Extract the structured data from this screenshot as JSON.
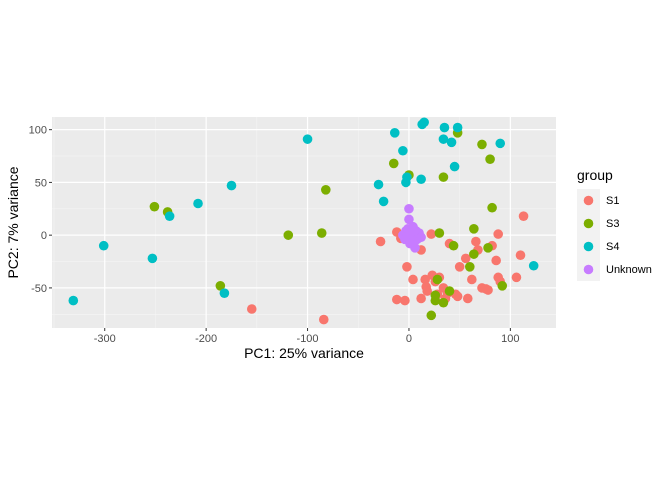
{
  "chart_data": {
    "type": "scatter",
    "title": "",
    "xlabel": "PC1: 25% variance",
    "ylabel": "PC2: 7% variance",
    "xlim": [
      -352,
      145
    ],
    "ylim": [
      -88,
      112
    ],
    "xticks": [
      -300,
      -200,
      -100,
      0,
      100
    ],
    "yticks": [
      -50,
      0,
      50,
      100
    ],
    "xtick_labels": [
      "-300",
      "-200",
      "-100",
      "0",
      "100"
    ],
    "ytick_labels": [
      "-50",
      "0",
      "50",
      "100"
    ],
    "grid": true,
    "legend_position": "right",
    "legend_title": "group",
    "series": [
      {
        "name": "S1",
        "color": "#F8766D",
        "points": [
          [
            -155,
            -70
          ],
          [
            -84,
            -80
          ],
          [
            -28,
            -6
          ],
          [
            -12,
            3
          ],
          [
            -12,
            -61
          ],
          [
            -8,
            -3
          ],
          [
            -4,
            -62
          ],
          [
            -2,
            -30
          ],
          [
            4,
            -42
          ],
          [
            5,
            -5
          ],
          [
            8,
            2
          ],
          [
            12,
            -14
          ],
          [
            12,
            -60
          ],
          [
            16,
            -42
          ],
          [
            17,
            -49
          ],
          [
            18,
            -53
          ],
          [
            22,
            1
          ],
          [
            23,
            -38
          ],
          [
            26,
            -44
          ],
          [
            28,
            -56
          ],
          [
            30,
            -40
          ],
          [
            34,
            -50
          ],
          [
            36,
            -60
          ],
          [
            38,
            -55
          ],
          [
            40,
            -8
          ],
          [
            46,
            -56
          ],
          [
            48,
            -58
          ],
          [
            50,
            -30
          ],
          [
            56,
            -22
          ],
          [
            58,
            -60
          ],
          [
            62,
            -42
          ],
          [
            66,
            -6
          ],
          [
            68,
            -14
          ],
          [
            72,
            -50
          ],
          [
            76,
            -51
          ],
          [
            82,
            -10
          ],
          [
            86,
            -24
          ],
          [
            88,
            1
          ],
          [
            88,
            -40
          ],
          [
            90,
            -44
          ],
          [
            106,
            -40
          ],
          [
            110,
            -19
          ],
          [
            113,
            18
          ],
          [
            78,
            -52
          ]
        ]
      },
      {
        "name": "S3",
        "color": "#7CAE00",
        "points": [
          [
            -251,
            27
          ],
          [
            -238,
            22
          ],
          [
            -186,
            -48
          ],
          [
            -119,
            0
          ],
          [
            -86,
            2
          ],
          [
            -82,
            43
          ],
          [
            -15,
            68
          ],
          [
            0,
            57
          ],
          [
            26,
            -57
          ],
          [
            26,
            -62
          ],
          [
            28,
            -42
          ],
          [
            30,
            2
          ],
          [
            34,
            55
          ],
          [
            40,
            -53
          ],
          [
            44,
            -10
          ],
          [
            48,
            97
          ],
          [
            60,
            -30
          ],
          [
            64,
            6
          ],
          [
            64,
            -18
          ],
          [
            72,
            86
          ],
          [
            78,
            -12
          ],
          [
            80,
            72
          ],
          [
            82,
            26
          ],
          [
            92,
            -48
          ],
          [
            22,
            -76
          ],
          [
            34,
            -64
          ]
        ]
      },
      {
        "name": "S4",
        "color": "#00BFC4",
        "points": [
          [
            -331,
            -62
          ],
          [
            -301,
            -10
          ],
          [
            -253,
            -22
          ],
          [
            -236,
            18
          ],
          [
            -208,
            30
          ],
          [
            -182,
            -55
          ],
          [
            -175,
            47
          ],
          [
            -100,
            91
          ],
          [
            -30,
            48
          ],
          [
            -25,
            32
          ],
          [
            -14,
            97
          ],
          [
            -6,
            80
          ],
          [
            -3,
            50
          ],
          [
            -2,
            55
          ],
          [
            12,
            53
          ],
          [
            13,
            105
          ],
          [
            15,
            107
          ],
          [
            34,
            91
          ],
          [
            35,
            102
          ],
          [
            42,
            88
          ],
          [
            45,
            65
          ],
          [
            48,
            102
          ],
          [
            90,
            87
          ],
          [
            123,
            -29
          ]
        ]
      },
      {
        "name": "Unknown",
        "color": "#C77CFF",
        "points": [
          [
            -6,
            0
          ],
          [
            -4,
            -4
          ],
          [
            -3,
            4
          ],
          [
            -2,
            -2
          ],
          [
            -1,
            6
          ],
          [
            0,
            25
          ],
          [
            0,
            15
          ],
          [
            1,
            -8
          ],
          [
            2,
            3
          ],
          [
            3,
            -3
          ],
          [
            4,
            8
          ],
          [
            5,
            0
          ],
          [
            6,
            -12
          ],
          [
            7,
            4
          ],
          [
            8,
            -4
          ],
          [
            10,
            2
          ],
          [
            12,
            -2
          ],
          [
            4,
            -6
          ]
        ]
      }
    ]
  }
}
